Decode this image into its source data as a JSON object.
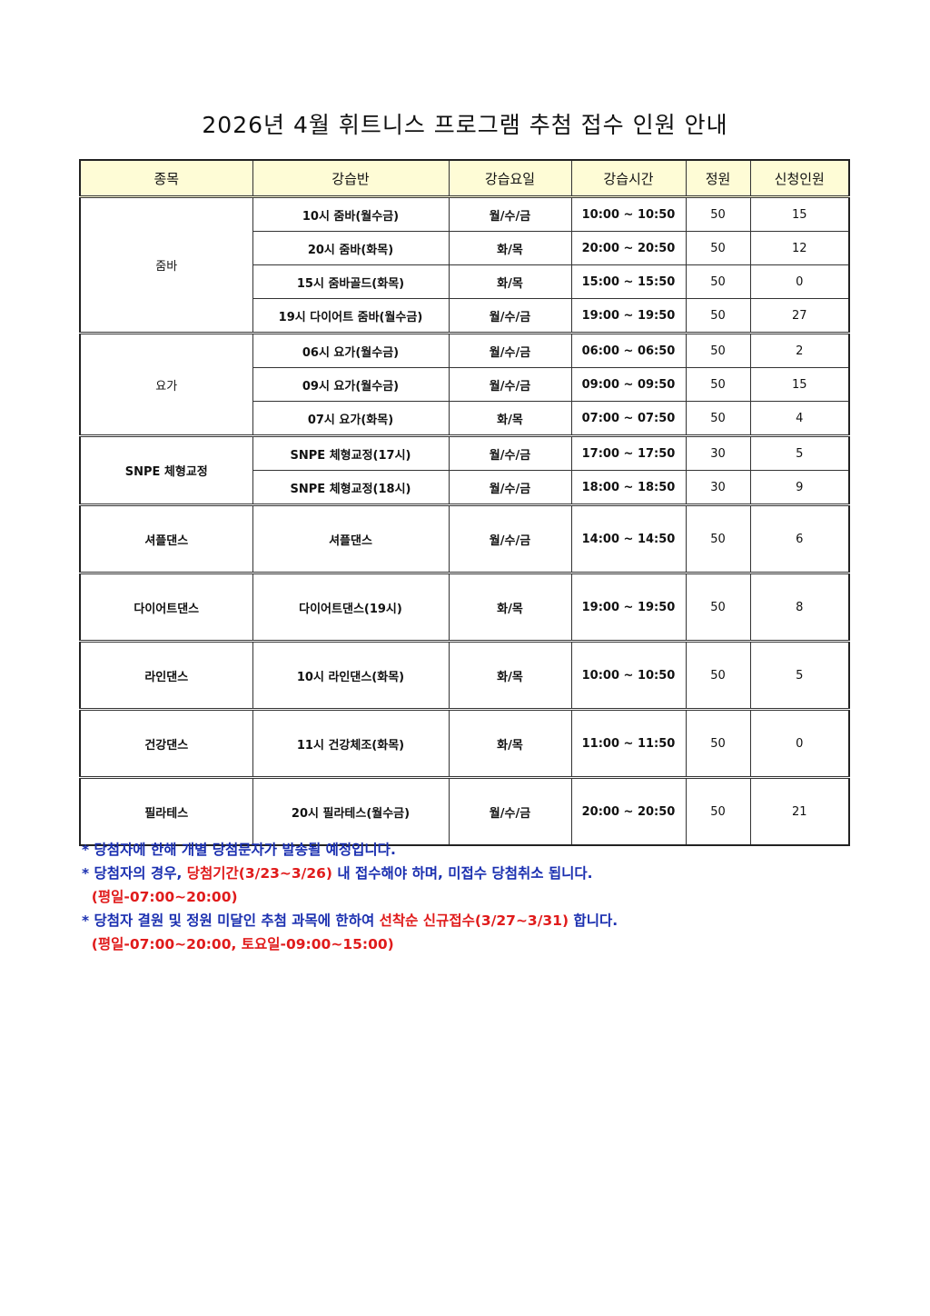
{
  "title": "2026년 4월 휘트니스 프로그램 추첨 접수 인원 안내",
  "table": {
    "headers": [
      "종목",
      "강습반",
      "강습요일",
      "강습시간",
      "정원",
      "신청인원"
    ],
    "groups": [
      {
        "category": "줌바",
        "rows": [
          {
            "class": "10시 줌바(월수금)",
            "days": "월/수/금",
            "time": "10:00 ~ 10:50",
            "capacity": "50",
            "applicants": "15"
          },
          {
            "class": "20시 줌바(화목)",
            "days": "화/목",
            "time": "20:00 ~ 20:50",
            "capacity": "50",
            "applicants": "12"
          },
          {
            "class": "15시 줌바골드(화목)",
            "days": "화/목",
            "time": "15:00 ~ 15:50",
            "capacity": "50",
            "applicants": "0"
          },
          {
            "class": "19시 다이어트 줌바(월수금)",
            "days": "월/수/금",
            "time": "19:00 ~ 19:50",
            "capacity": "50",
            "applicants": "27"
          }
        ]
      },
      {
        "category": "요가",
        "rows": [
          {
            "class": "06시 요가(월수금)",
            "days": "월/수/금",
            "time": "06:00 ~ 06:50",
            "capacity": "50",
            "applicants": "2"
          },
          {
            "class": "09시 요가(월수금)",
            "days": "월/수/금",
            "time": "09:00 ~ 09:50",
            "capacity": "50",
            "applicants": "15"
          },
          {
            "class": "07시 요가(화목)",
            "days": "화/목",
            "time": "07:00 ~ 07:50",
            "capacity": "50",
            "applicants": "4"
          }
        ]
      },
      {
        "category": "SNPE 체형교정",
        "rows": [
          {
            "class": "SNPE 체형교정(17시)",
            "days": "월/수/금",
            "time": "17:00 ~ 17:50",
            "capacity": "30",
            "applicants": "5"
          },
          {
            "class": "SNPE 체형교정(18시)",
            "days": "월/수/금",
            "time": "18:00 ~ 18:50",
            "capacity": "30",
            "applicants": "9"
          }
        ]
      },
      {
        "category": "셔플댄스",
        "rows": [
          {
            "class": "셔플댄스",
            "days": "월/수/금",
            "time": "14:00 ~ 14:50",
            "capacity": "50",
            "applicants": "6"
          }
        ]
      },
      {
        "category": "다이어트댄스",
        "rows": [
          {
            "class": "다이어트댄스(19시)",
            "days": "화/목",
            "time": "19:00 ~ 19:50",
            "capacity": "50",
            "applicants": "8"
          }
        ]
      },
      {
        "category": "라인댄스",
        "rows": [
          {
            "class": "10시 라인댄스(화목)",
            "days": "화/목",
            "time": "10:00 ~ 10:50",
            "capacity": "50",
            "applicants": "5"
          }
        ]
      },
      {
        "category": "건강댄스",
        "rows": [
          {
            "class": "11시 건강체조(화목)",
            "days": "화/목",
            "time": "11:00 ~ 11:50",
            "capacity": "50",
            "applicants": "0"
          }
        ]
      },
      {
        "category": "필라테스",
        "rows": [
          {
            "class": "20시 필라테스(월수금)",
            "days": "월/수/금",
            "time": "20:00 ~ 20:50",
            "capacity": "50",
            "applicants": "21"
          }
        ]
      }
    ]
  },
  "colors": {
    "blue": "#1a2fb0",
    "red": "#e01b1b",
    "header_bg": "#fefcd6"
  },
  "notes": [
    [
      {
        "text": "* 당첨자에 한해 개별 당첨문자가 발송될 예정입니다.",
        "color": "blue"
      }
    ],
    [
      {
        "text": "* 당첨자의 경우, ",
        "color": "blue"
      },
      {
        "text": "당첨기간(3/23~3/26)",
        "color": "red"
      },
      {
        "text": " 내 접수해야 하며, 미접수 당첨취소 됩니다.",
        "color": "blue"
      }
    ],
    [
      {
        "text": "  (평일-07:00~20:00)",
        "color": "red"
      }
    ],
    [
      {
        "text": "* 당첨자 결원 및 정원 미달인 추첨 과목에 한하여 ",
        "color": "blue"
      },
      {
        "text": "선착순 신규접수(3/27~3/31)",
        "color": "red"
      },
      {
        "text": " 합니다.",
        "color": "blue"
      }
    ],
    [
      {
        "text": "  (평일-07:00~20:00, 토요일-09:00~15:00)",
        "color": "red"
      }
    ]
  ]
}
